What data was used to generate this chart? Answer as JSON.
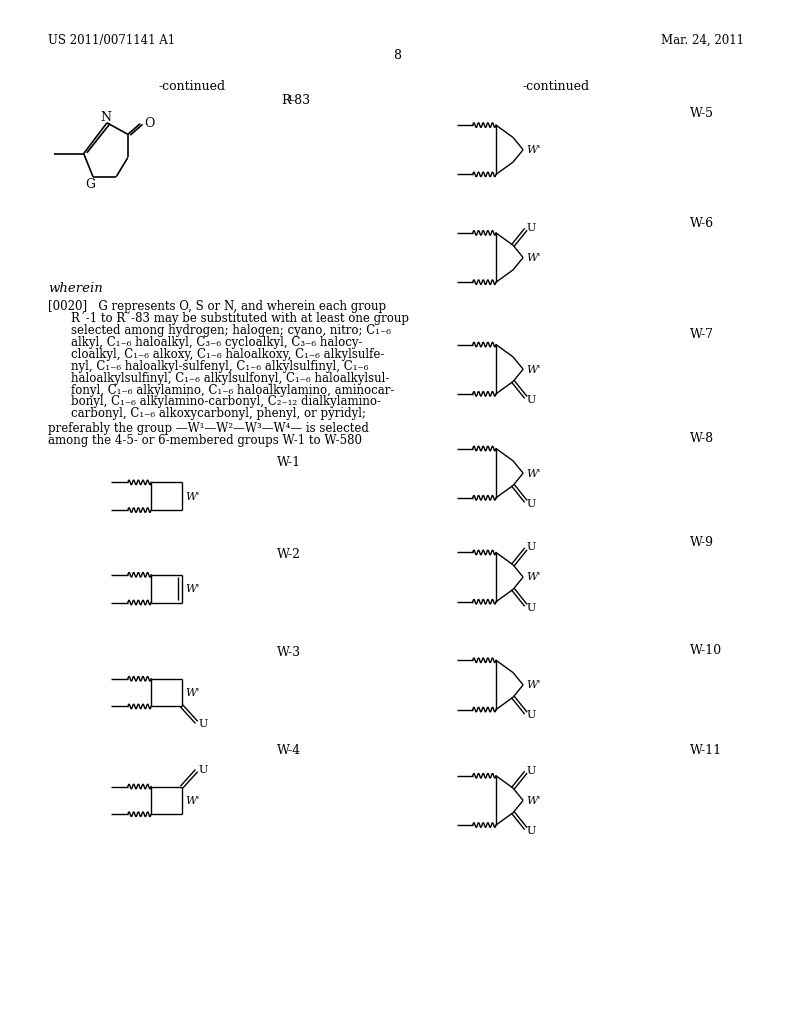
{
  "header_left": "US 2011/0071141 A1",
  "header_right": "Mar. 24, 2011",
  "page_number": "8",
  "continued_left": "-continued",
  "continued_right": "-continued",
  "background_color": "#ffffff",
  "paragraph_lines": [
    "[0020]   G represents O, S or N, and wherein each group",
    "R´-1 to R´-83 may be substituted with at least one group",
    "selected among hydrogen; halogen; cyano, nitro; C₁₋₆",
    "alkyl, C₁₋₆ haloalkyl, C₃₋₆ cycloalkyl, C₃₋₆ halocy-",
    "cloalkyl, C₁₋₆ alkoxy, C₁₋₆ haloalkoxy, C₁₋₆ alkylsulfe-",
    "nyl, C₁₋₆ haloalkyl-sulfenyl, C₁₋₆ alkylsulfinyl, C₁₋₆",
    "haloalkylsulfinyl, C₁₋₆ alkylsulfonyl, C₁₋₆ haloalkylsul-",
    "fonyl, C₁₋₆ alkylamino, C₁₋₆ haloalkylamino, aminocar-",
    "bonyl, C₁₋₆ alkylamino-carbonyl, C₂₋₁₂ dialkylamino-",
    "carbonyl, C₁₋₆ alkoxycarbonyl, phenyl, or pyridyl;"
  ],
  "pref_line1": "preferably the group —W¹—W²—W³—W⁴— is selected",
  "pref_line2": "among the 4-5- or 6-membered groups W-1 to W-580"
}
